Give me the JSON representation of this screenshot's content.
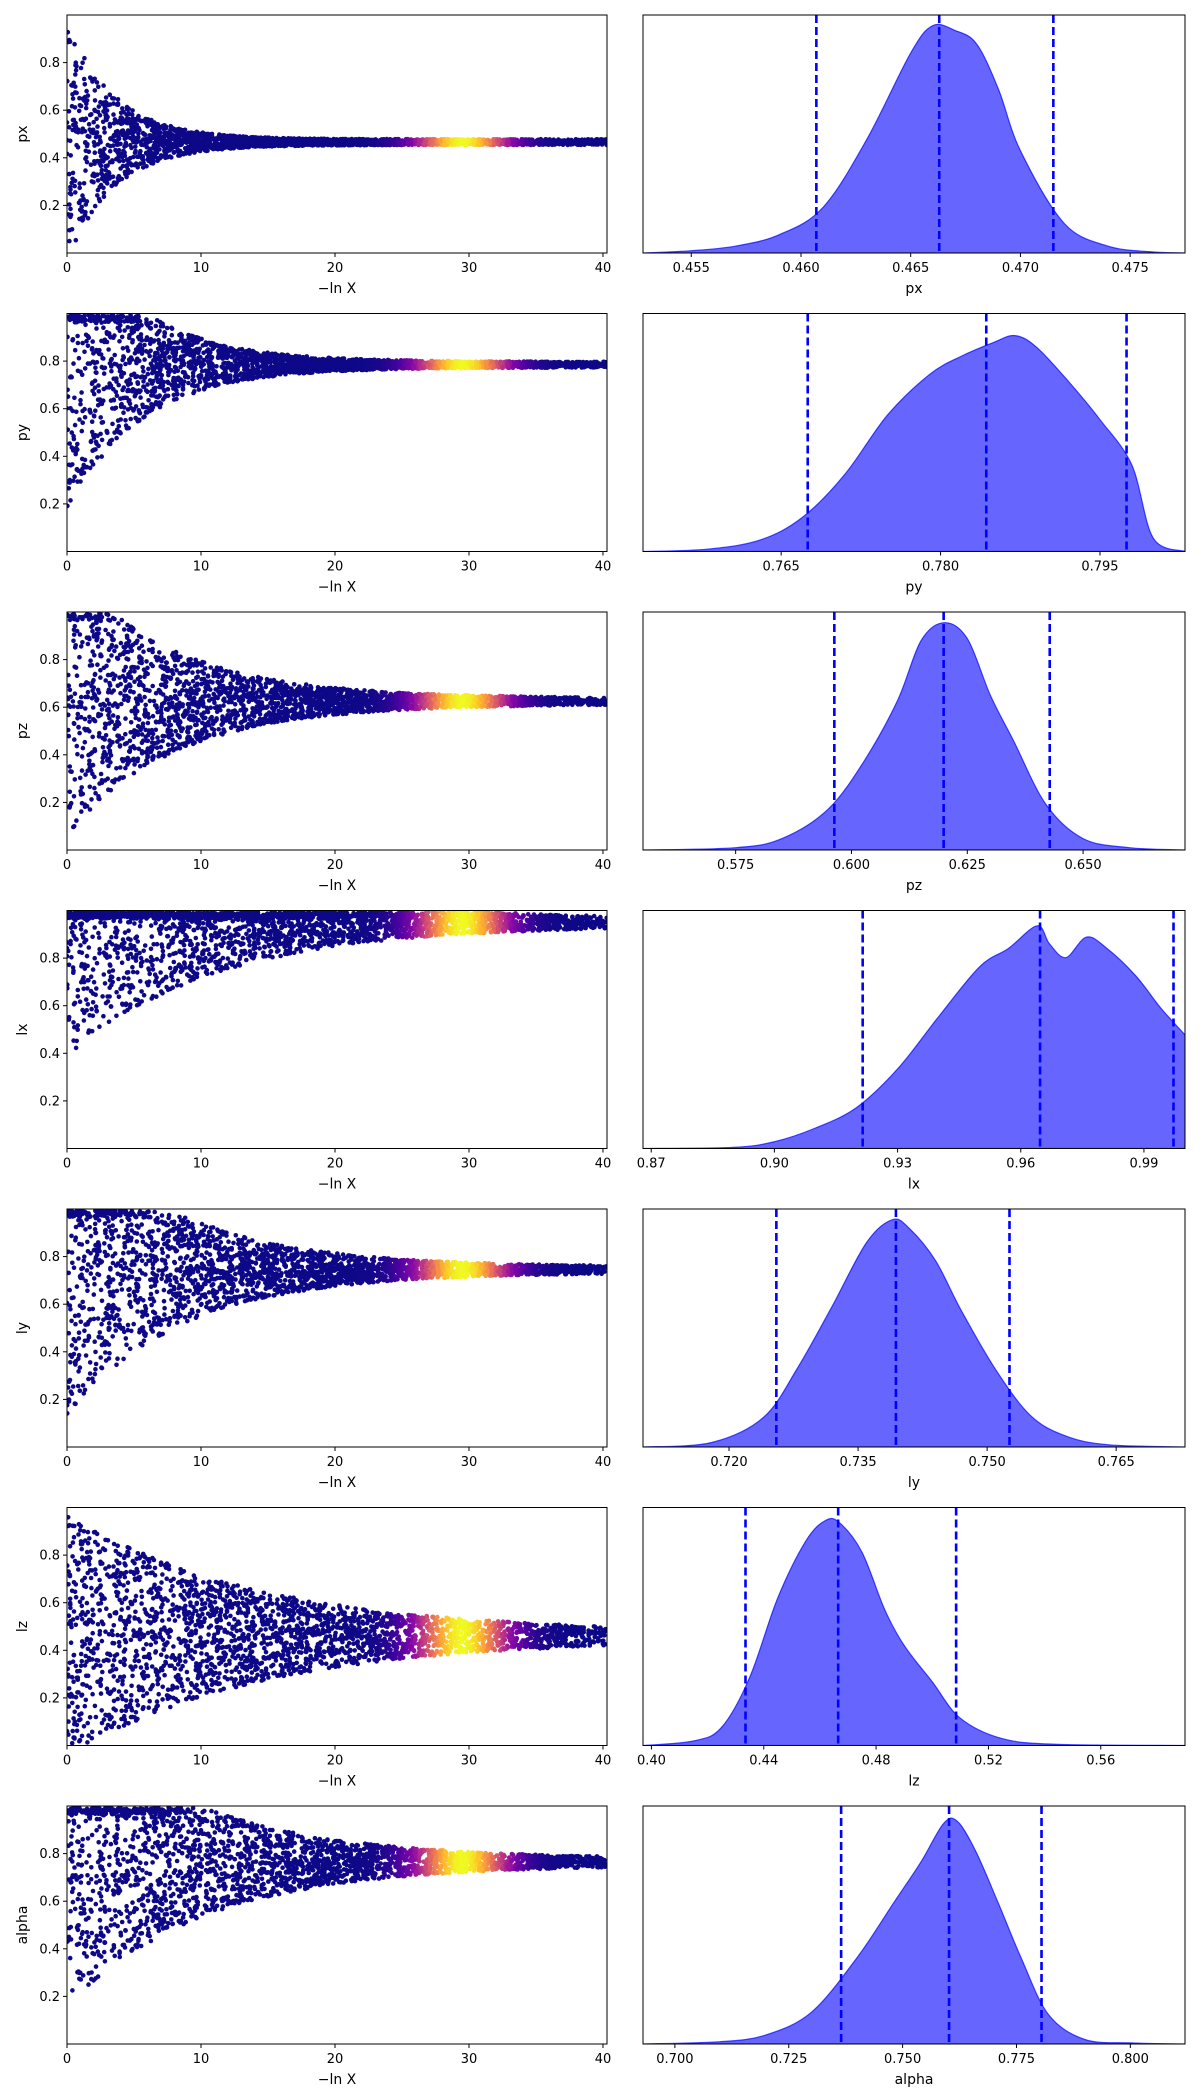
{
  "figure": {
    "type": "dynesty-trace-plot"
  },
  "chart_data": [
    {
      "type": "scatter",
      "param": "px",
      "xlabel": "−ln X",
      "ylabel": "px",
      "xlim": [
        0,
        40.3
      ],
      "ylim": [
        0,
        1
      ],
      "xticks": [
        0,
        10,
        20,
        30,
        40
      ],
      "yticks": [
        0.2,
        0.4,
        0.6,
        0.8
      ],
      "ytick_labels": [
        "0.2",
        "0.4",
        "0.6",
        "0.8"
      ],
      "converge_value": 0.466,
      "spread_start": 0.5,
      "decay_scale": 3.5,
      "peak_lnx": 29.5,
      "colormap": "plasma"
    },
    {
      "type": "area",
      "param": "px",
      "xlabel": "px",
      "xlim": [
        0.4528,
        0.4775
      ],
      "xticks": [
        0.455,
        0.46,
        0.465,
        0.47,
        0.475
      ],
      "xtick_labels": [
        "0.455",
        "0.460",
        "0.465",
        "0.470",
        "0.475"
      ],
      "quantile_lines": [
        0.4607,
        0.4663,
        0.4715
      ],
      "density": {
        "x": [
          0.4528,
          0.455,
          0.457,
          0.459,
          0.461,
          0.463,
          0.465,
          0.466,
          0.467,
          0.468,
          0.469,
          0.47,
          0.472,
          0.474,
          0.476,
          0.4775
        ],
        "y": [
          0,
          0.01,
          0.03,
          0.08,
          0.2,
          0.5,
          0.88,
          1.0,
          0.98,
          0.92,
          0.72,
          0.45,
          0.13,
          0.03,
          0.005,
          0
        ]
      }
    },
    {
      "type": "scatter",
      "param": "py",
      "xlabel": "−ln X",
      "ylabel": "py",
      "xlim": [
        0,
        40.3
      ],
      "ylim": [
        0,
        1
      ],
      "xticks": [
        0,
        10,
        20,
        30,
        40
      ],
      "yticks": [
        0.2,
        0.4,
        0.6,
        0.8
      ],
      "ytick_labels": [
        "0.2",
        "0.4",
        "0.6",
        "0.8"
      ],
      "converge_value": 0.785,
      "spread_start": 0.6,
      "decay_scale": 5.5,
      "peak_lnx": 29.5,
      "colormap": "plasma"
    },
    {
      "type": "area",
      "param": "py",
      "xlabel": "py",
      "xlim": [
        0.752,
        0.803
      ],
      "xticks": [
        0.765,
        0.78,
        0.795
      ],
      "xtick_labels": [
        "0.765",
        "0.780",
        "0.795"
      ],
      "quantile_lines": [
        0.7675,
        0.7843,
        0.7975
      ],
      "density": {
        "x": [
          0.752,
          0.758,
          0.763,
          0.767,
          0.771,
          0.775,
          0.779,
          0.782,
          0.785,
          0.787,
          0.789,
          0.792,
          0.795,
          0.798,
          0.8,
          0.803
        ],
        "y": [
          0,
          0.01,
          0.05,
          0.15,
          0.34,
          0.6,
          0.78,
          0.86,
          0.92,
          0.95,
          0.9,
          0.75,
          0.58,
          0.38,
          0.06,
          0
        ]
      }
    },
    {
      "type": "scatter",
      "param": "pz",
      "xlabel": "−ln X",
      "ylabel": "pz",
      "xlim": [
        0,
        40.3
      ],
      "ylim": [
        0,
        1
      ],
      "xticks": [
        0,
        10,
        20,
        30,
        40
      ],
      "yticks": [
        0.2,
        0.4,
        0.6,
        0.8
      ],
      "ytick_labels": [
        "0.2",
        "0.4",
        "0.6",
        "0.8"
      ],
      "converge_value": 0.625,
      "spread_start": 0.55,
      "decay_scale": 8.0,
      "peak_lnx": 29.5,
      "colormap": "plasma"
    },
    {
      "type": "area",
      "param": "pz",
      "xlabel": "pz",
      "xlim": [
        0.555,
        0.672
      ],
      "xticks": [
        0.575,
        0.6,
        0.625,
        0.65
      ],
      "xtick_labels": [
        "0.575",
        "0.600",
        "0.625",
        "0.650"
      ],
      "quantile_lines": [
        0.5963,
        0.6199,
        0.6428
      ],
      "density": {
        "x": [
          0.555,
          0.575,
          0.585,
          0.595,
          0.603,
          0.61,
          0.615,
          0.62,
          0.625,
          0.63,
          0.635,
          0.642,
          0.65,
          0.66,
          0.672
        ],
        "y": [
          0,
          0.01,
          0.05,
          0.18,
          0.4,
          0.66,
          0.92,
          1.0,
          0.93,
          0.68,
          0.48,
          0.2,
          0.05,
          0.01,
          0
        ]
      }
    },
    {
      "type": "scatter",
      "param": "lx",
      "xlabel": "−ln X",
      "ylabel": "lx",
      "xlim": [
        0,
        40.3
      ],
      "ylim": [
        0,
        1
      ],
      "xticks": [
        0,
        10,
        20,
        30,
        40
      ],
      "yticks": [
        0.2,
        0.4,
        0.6,
        0.8
      ],
      "ytick_labels": [
        "0.2",
        "0.4",
        "0.6",
        "0.8"
      ],
      "converge_value": 0.95,
      "spread_start": 0.55,
      "decay_scale": 11.0,
      "peak_lnx": 29.5,
      "colormap": "plasma"
    },
    {
      "type": "area",
      "param": "lx",
      "xlabel": "lx",
      "xlim": [
        0.868,
        1.0
      ],
      "xticks": [
        0.87,
        0.9,
        0.93,
        0.96,
        0.99
      ],
      "xtick_labels": [
        "0.87",
        "0.90",
        "0.93",
        "0.96",
        "0.99"
      ],
      "quantile_lines": [
        0.9215,
        0.9647,
        0.9972
      ],
      "density": {
        "x": [
          0.868,
          0.89,
          0.9,
          0.91,
          0.92,
          0.93,
          0.94,
          0.95,
          0.957,
          0.964,
          0.967,
          0.971,
          0.976,
          0.981,
          0.988,
          0.994,
          1.0
        ],
        "y": [
          0,
          0.005,
          0.03,
          0.09,
          0.18,
          0.35,
          0.58,
          0.8,
          0.88,
          0.98,
          0.9,
          0.84,
          0.93,
          0.88,
          0.76,
          0.62,
          0.5
        ]
      }
    },
    {
      "type": "scatter",
      "param": "ly",
      "xlabel": "−ln X",
      "ylabel": "ly",
      "xlim": [
        0,
        40.3
      ],
      "ylim": [
        0,
        1
      ],
      "xticks": [
        0,
        10,
        20,
        30,
        40
      ],
      "yticks": [
        0.2,
        0.4,
        0.6,
        0.8
      ],
      "ytick_labels": [
        "0.2",
        "0.4",
        "0.6",
        "0.8"
      ],
      "converge_value": 0.745,
      "spread_start": 0.6,
      "decay_scale": 8.5,
      "peak_lnx": 29.5,
      "colormap": "plasma"
    },
    {
      "type": "area",
      "param": "ly",
      "xlabel": "ly",
      "xlim": [
        0.71,
        0.773
      ],
      "xticks": [
        0.72,
        0.735,
        0.75,
        0.765
      ],
      "xtick_labels": [
        "0.720",
        "0.735",
        "0.750",
        "0.765"
      ],
      "quantile_lines": [
        0.7255,
        0.7394,
        0.7526
      ],
      "density": {
        "x": [
          0.71,
          0.718,
          0.724,
          0.728,
          0.732,
          0.736,
          0.739,
          0.741,
          0.744,
          0.747,
          0.751,
          0.755,
          0.759,
          0.764,
          0.773
        ],
        "y": [
          0,
          0.02,
          0.13,
          0.35,
          0.62,
          0.9,
          1.0,
          0.96,
          0.82,
          0.6,
          0.34,
          0.14,
          0.05,
          0.01,
          0
        ]
      }
    },
    {
      "type": "scatter",
      "param": "lz",
      "xlabel": "−ln X",
      "ylabel": "lz",
      "xlim": [
        0,
        40.3
      ],
      "ylim": [
        0,
        1
      ],
      "xticks": [
        0,
        10,
        20,
        30,
        40
      ],
      "yticks": [
        0.2,
        0.4,
        0.6,
        0.8
      ],
      "ytick_labels": [
        "0.2",
        "0.4",
        "0.6",
        "0.8"
      ],
      "converge_value": 0.46,
      "spread_start": 0.5,
      "decay_scale": 14.0,
      "peak_lnx": 29.5,
      "colormap": "plasma"
    },
    {
      "type": "area",
      "param": "lz",
      "xlabel": "lz",
      "xlim": [
        0.397,
        0.59
      ],
      "xticks": [
        0.4,
        0.44,
        0.48,
        0.52,
        0.56
      ],
      "xtick_labels": [
        "0.40",
        "0.44",
        "0.48",
        "0.52",
        "0.56"
      ],
      "quantile_lines": [
        0.4335,
        0.4665,
        0.5085
      ],
      "density": {
        "x": [
          0.397,
          0.415,
          0.425,
          0.435,
          0.445,
          0.455,
          0.462,
          0.467,
          0.475,
          0.483,
          0.49,
          0.5,
          0.51,
          0.525,
          0.545,
          0.59
        ],
        "y": [
          0,
          0.02,
          0.08,
          0.3,
          0.65,
          0.9,
          0.99,
          0.98,
          0.85,
          0.6,
          0.44,
          0.28,
          0.12,
          0.03,
          0.005,
          0
        ]
      }
    },
    {
      "type": "scatter",
      "param": "alpha",
      "xlabel": "−ln X",
      "ylabel": "alpha",
      "xlim": [
        0,
        40.3
      ],
      "ylim": [
        0,
        1
      ],
      "xticks": [
        0,
        10,
        20,
        30,
        40
      ],
      "yticks": [
        0.2,
        0.4,
        0.6,
        0.8
      ],
      "ytick_labels": [
        "0.2",
        "0.4",
        "0.6",
        "0.8"
      ],
      "converge_value": 0.765,
      "spread_start": 0.6,
      "decay_scale": 10.0,
      "peak_lnx": 29.5,
      "colormap": "plasma"
    },
    {
      "type": "area",
      "param": "alpha",
      "xlabel": "alpha",
      "xlim": [
        0.693,
        0.812
      ],
      "xticks": [
        0.7,
        0.725,
        0.75,
        0.775,
        0.8
      ],
      "xtick_labels": [
        "0.700",
        "0.725",
        "0.750",
        "0.775",
        "0.800"
      ],
      "quantile_lines": [
        0.7365,
        0.7602,
        0.7805
      ],
      "density": {
        "x": [
          0.693,
          0.71,
          0.72,
          0.73,
          0.74,
          0.748,
          0.754,
          0.759,
          0.762,
          0.766,
          0.771,
          0.776,
          0.782,
          0.79,
          0.8,
          0.812
        ],
        "y": [
          0,
          0.01,
          0.04,
          0.14,
          0.38,
          0.62,
          0.8,
          0.97,
          0.98,
          0.85,
          0.62,
          0.38,
          0.13,
          0.02,
          0.005,
          0
        ]
      }
    }
  ]
}
